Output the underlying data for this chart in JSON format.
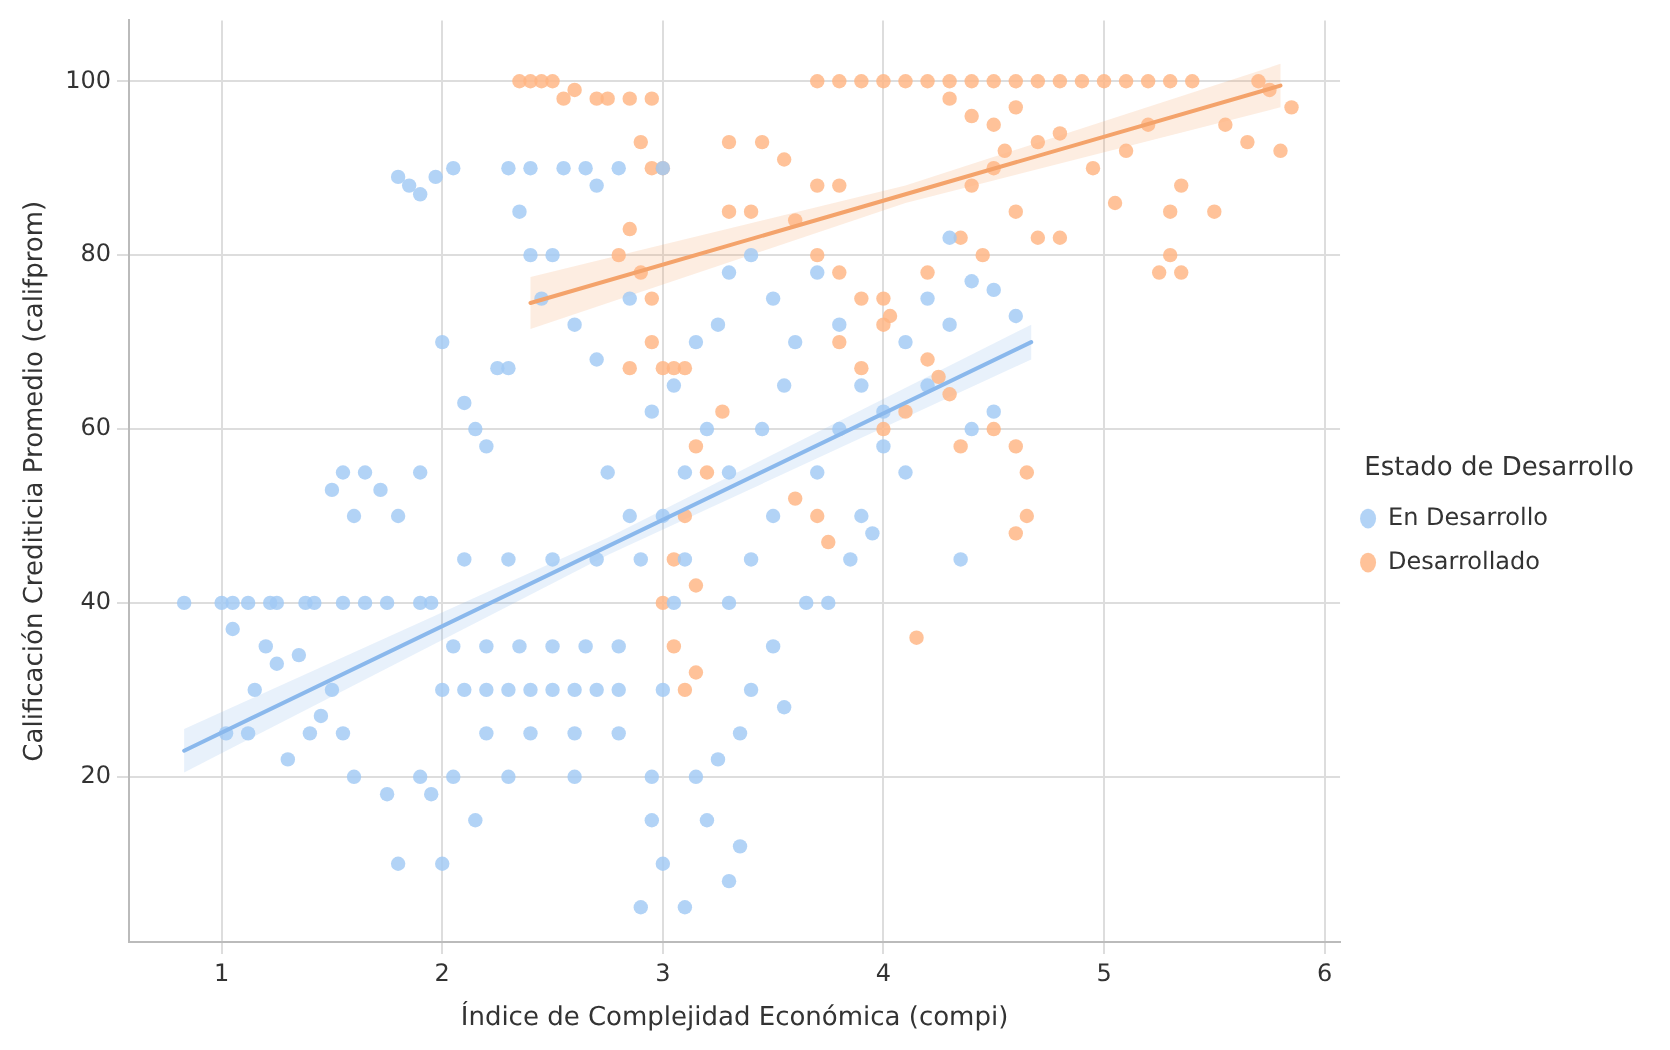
{
  "chart_data": {
    "type": "scatter",
    "xlabel": "Índice de Complejidad Económica (compi)",
    "ylabel": "Calificación Crediticia Promedio (califprom)",
    "legend_title": "Estado de Desarrollo",
    "xlim": [
      0.58,
      6.07
    ],
    "ylim": [
      1,
      107
    ],
    "xticks": [
      1,
      2,
      3,
      4,
      5,
      6
    ],
    "yticks": [
      20,
      40,
      60,
      80,
      100
    ],
    "grid": true,
    "legend": "right",
    "marker": "circle",
    "series": [
      {
        "name": "En Desarrollo",
        "color": "#a1c9f4",
        "x": [
          0.83,
          1.0,
          1.05,
          1.12,
          1.22,
          1.25,
          1.38,
          1.42,
          1.55,
          1.65,
          1.75,
          1.9,
          1.95,
          1.05,
          1.2,
          1.25,
          1.35,
          1.45,
          1.02,
          1.12,
          1.3,
          1.55,
          1.6,
          1.4,
          1.15,
          1.5,
          1.5,
          1.55,
          1.6,
          1.65,
          1.72,
          1.8,
          1.9,
          1.85,
          1.8,
          1.9,
          1.97,
          2.05,
          1.75,
          1.8,
          2.0,
          1.95,
          1.9,
          2.15,
          2.0,
          2.1,
          2.15,
          2.2,
          2.25,
          2.3,
          2.4,
          2.35,
          2.5,
          2.45,
          2.0,
          2.1,
          2.2,
          2.3,
          2.4,
          2.5,
          2.6,
          2.7,
          2.8,
          2.05,
          2.2,
          2.35,
          2.5,
          2.65,
          2.8,
          2.1,
          2.3,
          2.5,
          2.7,
          2.9,
          2.2,
          2.4,
          2.6,
          2.8,
          2.05,
          2.3,
          2.6,
          2.95,
          2.3,
          2.4,
          2.55,
          2.65,
          2.8,
          3.0,
          2.7,
          2.6,
          2.7,
          2.85,
          2.95,
          2.75,
          2.85,
          2.9,
          3.1,
          3.0,
          3.3,
          3.2,
          2.95,
          3.35,
          3.15,
          3.0,
          3.05,
          3.1,
          3.0,
          3.1,
          3.2,
          3.05,
          3.15,
          3.25,
          3.3,
          3.4,
          3.5,
          3.6,
          3.7,
          3.8,
          3.3,
          3.4,
          3.5,
          3.3,
          3.45,
          3.55,
          3.65,
          3.75,
          3.5,
          3.4,
          3.35,
          3.25,
          3.55,
          3.7,
          3.8,
          3.9,
          4.0,
          4.1,
          4.2,
          4.3,
          4.4,
          4.5,
          4.6,
          4.3,
          4.2,
          4.4,
          4.5,
          4.1,
          3.9,
          3.95,
          4.0,
          3.85,
          4.35
        ],
        "values": [
          40,
          40,
          40,
          40,
          40,
          40,
          40,
          40,
          40,
          40,
          40,
          40,
          40,
          37,
          35,
          33,
          34,
          27,
          25,
          25,
          22,
          25,
          20,
          25,
          30,
          30,
          53,
          55,
          50,
          55,
          53,
          50,
          55,
          88,
          89,
          87,
          89,
          90,
          18,
          10,
          10,
          18,
          20,
          15,
          70,
          63,
          60,
          58,
          67,
          67,
          80,
          85,
          80,
          75,
          30,
          30,
          30,
          30,
          30,
          30,
          30,
          30,
          30,
          35,
          35,
          35,
          35,
          35,
          35,
          45,
          45,
          45,
          45,
          45,
          25,
          25,
          25,
          25,
          20,
          20,
          20,
          20,
          90,
          90,
          90,
          90,
          90,
          90,
          88,
          72,
          68,
          75,
          62,
          55,
          50,
          5,
          5,
          10,
          8,
          15,
          15,
          12,
          20,
          30,
          40,
          45,
          50,
          55,
          60,
          65,
          70,
          72,
          78,
          80,
          75,
          70,
          78,
          72,
          40,
          45,
          50,
          55,
          60,
          65,
          40,
          40,
          35,
          30,
          25,
          22,
          28,
          55,
          60,
          65,
          62,
          70,
          75,
          72,
          77,
          76,
          73,
          82,
          65,
          60,
          62,
          55,
          50,
          48,
          58,
          45,
          45
        ]
      },
      {
        "name": "Desarrollado",
        "color": "#ffb482",
        "x": [
          2.35,
          2.4,
          2.45,
          2.5,
          2.6,
          2.7,
          2.75,
          2.85,
          2.95,
          2.55,
          2.9,
          2.95,
          3.0,
          2.85,
          2.8,
          2.9,
          2.95,
          2.95,
          3.0,
          2.85,
          3.05,
          3.1,
          3.27,
          3.15,
          3.2,
          3.1,
          3.05,
          3.15,
          3.0,
          3.05,
          3.1,
          3.15,
          3.7,
          3.8,
          3.9,
          4.0,
          4.1,
          4.2,
          4.3,
          4.4,
          4.5,
          4.6,
          4.7,
          4.8,
          4.9,
          5.0,
          5.1,
          5.2,
          5.3,
          5.4,
          5.7,
          5.75,
          4.3,
          4.4,
          4.5,
          4.6,
          4.55,
          4.5,
          4.4,
          4.6,
          4.35,
          4.45,
          4.7,
          4.8,
          3.3,
          3.45,
          3.55,
          3.7,
          3.8,
          3.6,
          3.3,
          3.4,
          3.7,
          3.8,
          3.9,
          4.0,
          4.03,
          4.2,
          4.25,
          4.3,
          4.1,
          4.0,
          4.35,
          4.5,
          4.6,
          4.65,
          4.65,
          4.6,
          4.15,
          3.8,
          3.9,
          3.6,
          3.7,
          3.75,
          4.95,
          5.05,
          5.1,
          5.2,
          5.35,
          5.3,
          5.3,
          5.25,
          5.35,
          5.55,
          5.65,
          5.8,
          5.85,
          5.5,
          4.0,
          4.2,
          4.8,
          4.7
        ],
        "values": [
          100,
          100,
          100,
          100,
          99,
          98,
          98,
          98,
          98,
          98,
          93,
          90,
          90,
          83,
          80,
          78,
          75,
          70,
          67,
          67,
          67,
          67,
          62,
          58,
          55,
          50,
          45,
          42,
          40,
          35,
          30,
          32,
          100,
          100,
          100,
          100,
          100,
          100,
          100,
          100,
          100,
          100,
          100,
          100,
          100,
          100,
          100,
          100,
          100,
          100,
          100,
          99,
          98,
          96,
          95,
          97,
          92,
          90,
          88,
          85,
          82,
          80,
          82,
          82,
          93,
          93,
          91,
          88,
          88,
          84,
          85,
          85,
          80,
          78,
          75,
          72,
          73,
          68,
          66,
          64,
          62,
          60,
          58,
          60,
          58,
          55,
          50,
          48,
          36,
          70,
          67,
          52,
          50,
          47,
          90,
          86,
          92,
          95,
          88,
          85,
          80,
          78,
          78,
          95,
          93,
          92,
          97,
          85,
          75,
          78,
          94,
          93
        ]
      },
      {
        "type": "line",
        "marker": "none",
        "color": "#8ab8ec",
        "x": [
          0.83,
          2.75,
          4.67
        ],
        "values": [
          23,
          46.5,
          70
        ],
        "lower": [
          20.5,
          45.5,
          68
        ],
        "upper": [
          25.5,
          47.5,
          72
        ]
      },
      {
        "type": "line",
        "marker": "none",
        "color": "#f4a36b",
        "x": [
          2.4,
          4.1,
          5.8
        ],
        "values": [
          74.5,
          87,
          99.5
        ],
        "lower": [
          71.5,
          86,
          97
        ],
        "upper": [
          77.5,
          88,
          102
        ]
      }
    ]
  }
}
